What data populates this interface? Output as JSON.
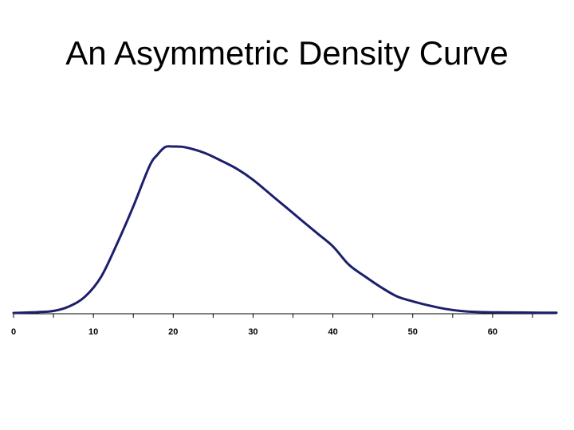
{
  "title": "An Asymmetric Density Curve",
  "colors": {
    "curve": "#1c1f6b",
    "axis": "#000000"
  },
  "chart_data": {
    "type": "line",
    "title": "An Asymmetric Density Curve",
    "xlabel": "",
    "ylabel": "",
    "xlim": [
      0,
      68
    ],
    "ylim": [
      0,
      1
    ],
    "grid": false,
    "xticks": [
      0,
      10,
      20,
      30,
      40,
      50,
      60
    ],
    "xtick_labels": [
      "0",
      "10",
      "20",
      "30",
      "40",
      "50",
      "60"
    ],
    "series": [
      {
        "values_x": [
          0,
          3,
          5,
          7,
          9,
          11,
          13,
          15,
          17,
          18,
          19,
          20,
          21,
          22,
          24,
          26,
          28,
          30,
          32,
          34,
          36,
          38,
          40,
          42,
          44,
          46,
          48,
          50,
          52,
          54,
          56,
          58,
          60,
          62,
          65,
          68
        ],
        "values_y": [
          0.0,
          0.005,
          0.012,
          0.04,
          0.1,
          0.22,
          0.42,
          0.64,
          0.88,
          0.95,
          0.997,
          1.0,
          0.999,
          0.99,
          0.96,
          0.915,
          0.865,
          0.8,
          0.72,
          0.64,
          0.56,
          0.48,
          0.4,
          0.29,
          0.22,
          0.155,
          0.1,
          0.07,
          0.045,
          0.025,
          0.012,
          0.006,
          0.004,
          0.003,
          0.002,
          0.001
        ]
      }
    ]
  }
}
